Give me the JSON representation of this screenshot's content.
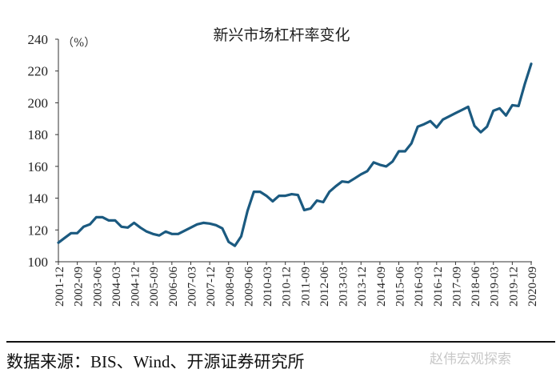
{
  "chart_data": {
    "type": "line",
    "title": "新兴市场杠杆率变化",
    "ylabel": "（%）",
    "xlabel": "",
    "ylim": [
      100,
      240
    ],
    "yticks": [
      100,
      120,
      140,
      160,
      180,
      200,
      220,
      240
    ],
    "frequency": "quarterly",
    "start_period": "2001-12",
    "end_period": "2020-09",
    "xtick_labels": [
      "2001-12",
      "2002-09",
      "2003-06",
      "2004-03",
      "2004-12",
      "2005-09",
      "2006-06",
      "2007-03",
      "2007-12",
      "2008-09",
      "2009-06",
      "2010-03",
      "2010-12",
      "2011-09",
      "2012-06",
      "2013-03",
      "2013-12",
      "2014-09",
      "2015-06",
      "2016-03",
      "2016-12",
      "2017-09",
      "2018-06",
      "2019-03",
      "2019-12",
      "2020-09"
    ],
    "grid": false,
    "series": [
      {
        "name": "新兴市场杠杆率",
        "color": "#1b5a80",
        "values": [
          112,
          115,
          118,
          118,
          122,
          123.5,
          128,
          128,
          126,
          126,
          122,
          121.5,
          124.5,
          121.5,
          119,
          117.5,
          116.5,
          119,
          117.5,
          117.5,
          119.5,
          121.5,
          123.5,
          124.5,
          124,
          123,
          121,
          112.5,
          110,
          116,
          132,
          144,
          144,
          141.5,
          138,
          141.5,
          141.5,
          142.5,
          142,
          132.5,
          133.5,
          138.5,
          137.5,
          144,
          147.5,
          150.5,
          150,
          152.5,
          155,
          157,
          162.5,
          161,
          160,
          163,
          169.5,
          169.5,
          174.5,
          185,
          186.5,
          188.5,
          184.5,
          189.5,
          191.5,
          193.5,
          195.5,
          197.5,
          185.5,
          181.5,
          185,
          195,
          196.5,
          192,
          198.5,
          198,
          212,
          224.5
        ]
      }
    ]
  },
  "footer": {
    "source": "数据来源：BIS、Wind、开源证券研究所",
    "watermark": "赵伟宏观探索"
  }
}
